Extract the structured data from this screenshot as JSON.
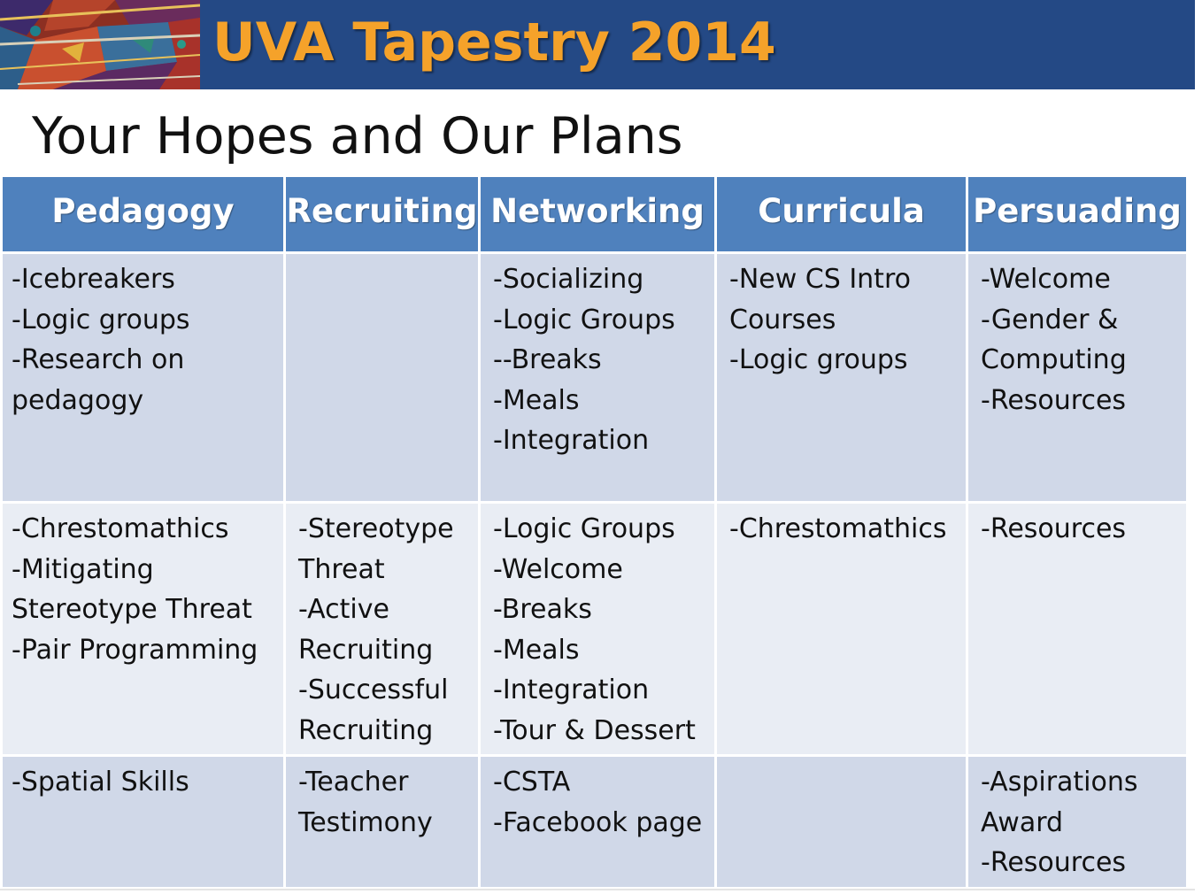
{
  "header": {
    "title": "UVA Tapestry 2014",
    "title_color": "#f5a22a",
    "band_color": "#244985"
  },
  "page_title": "Your Hopes and Our Plans",
  "table": {
    "header_color": "#4f81bd",
    "columns": [
      "Pedagogy",
      "Recruiting",
      "Networking",
      "Curricula",
      "Persuading"
    ],
    "rows": [
      [
        [
          "-Icebreakers",
          "-Logic groups",
          "-Research on",
          "pedagogy"
        ],
        [],
        [
          "-Socializing",
          "-Logic Groups",
          "--Breaks",
          "-Meals",
          "-Integration"
        ],
        [
          "-New CS Intro",
          "Courses",
          "-Logic groups"
        ],
        [
          "-Welcome",
          "-Gender &",
          "Computing",
          "-Resources"
        ]
      ],
      [
        [
          "-Chrestomathics",
          "-Mitigating",
          "Stereotype Threat",
          "-Pair Programming"
        ],
        [
          "-Stereotype",
          "Threat",
          "-Active",
          "Recruiting",
          "-Successful",
          "Recruiting"
        ],
        [
          "-Logic Groups",
          "-Welcome",
          "-Breaks",
          "-Meals",
          "-Integration",
          "-Tour & Dessert"
        ],
        [
          "-Chrestomathics"
        ],
        [
          "-Resources"
        ]
      ],
      [
        [
          "-Spatial Skills"
        ],
        [
          "-Teacher",
          "Testimony"
        ],
        [
          "-CSTA",
          "-Facebook page"
        ],
        [],
        [
          "-Aspirations",
          "Award",
          "-Resources"
        ]
      ]
    ]
  }
}
